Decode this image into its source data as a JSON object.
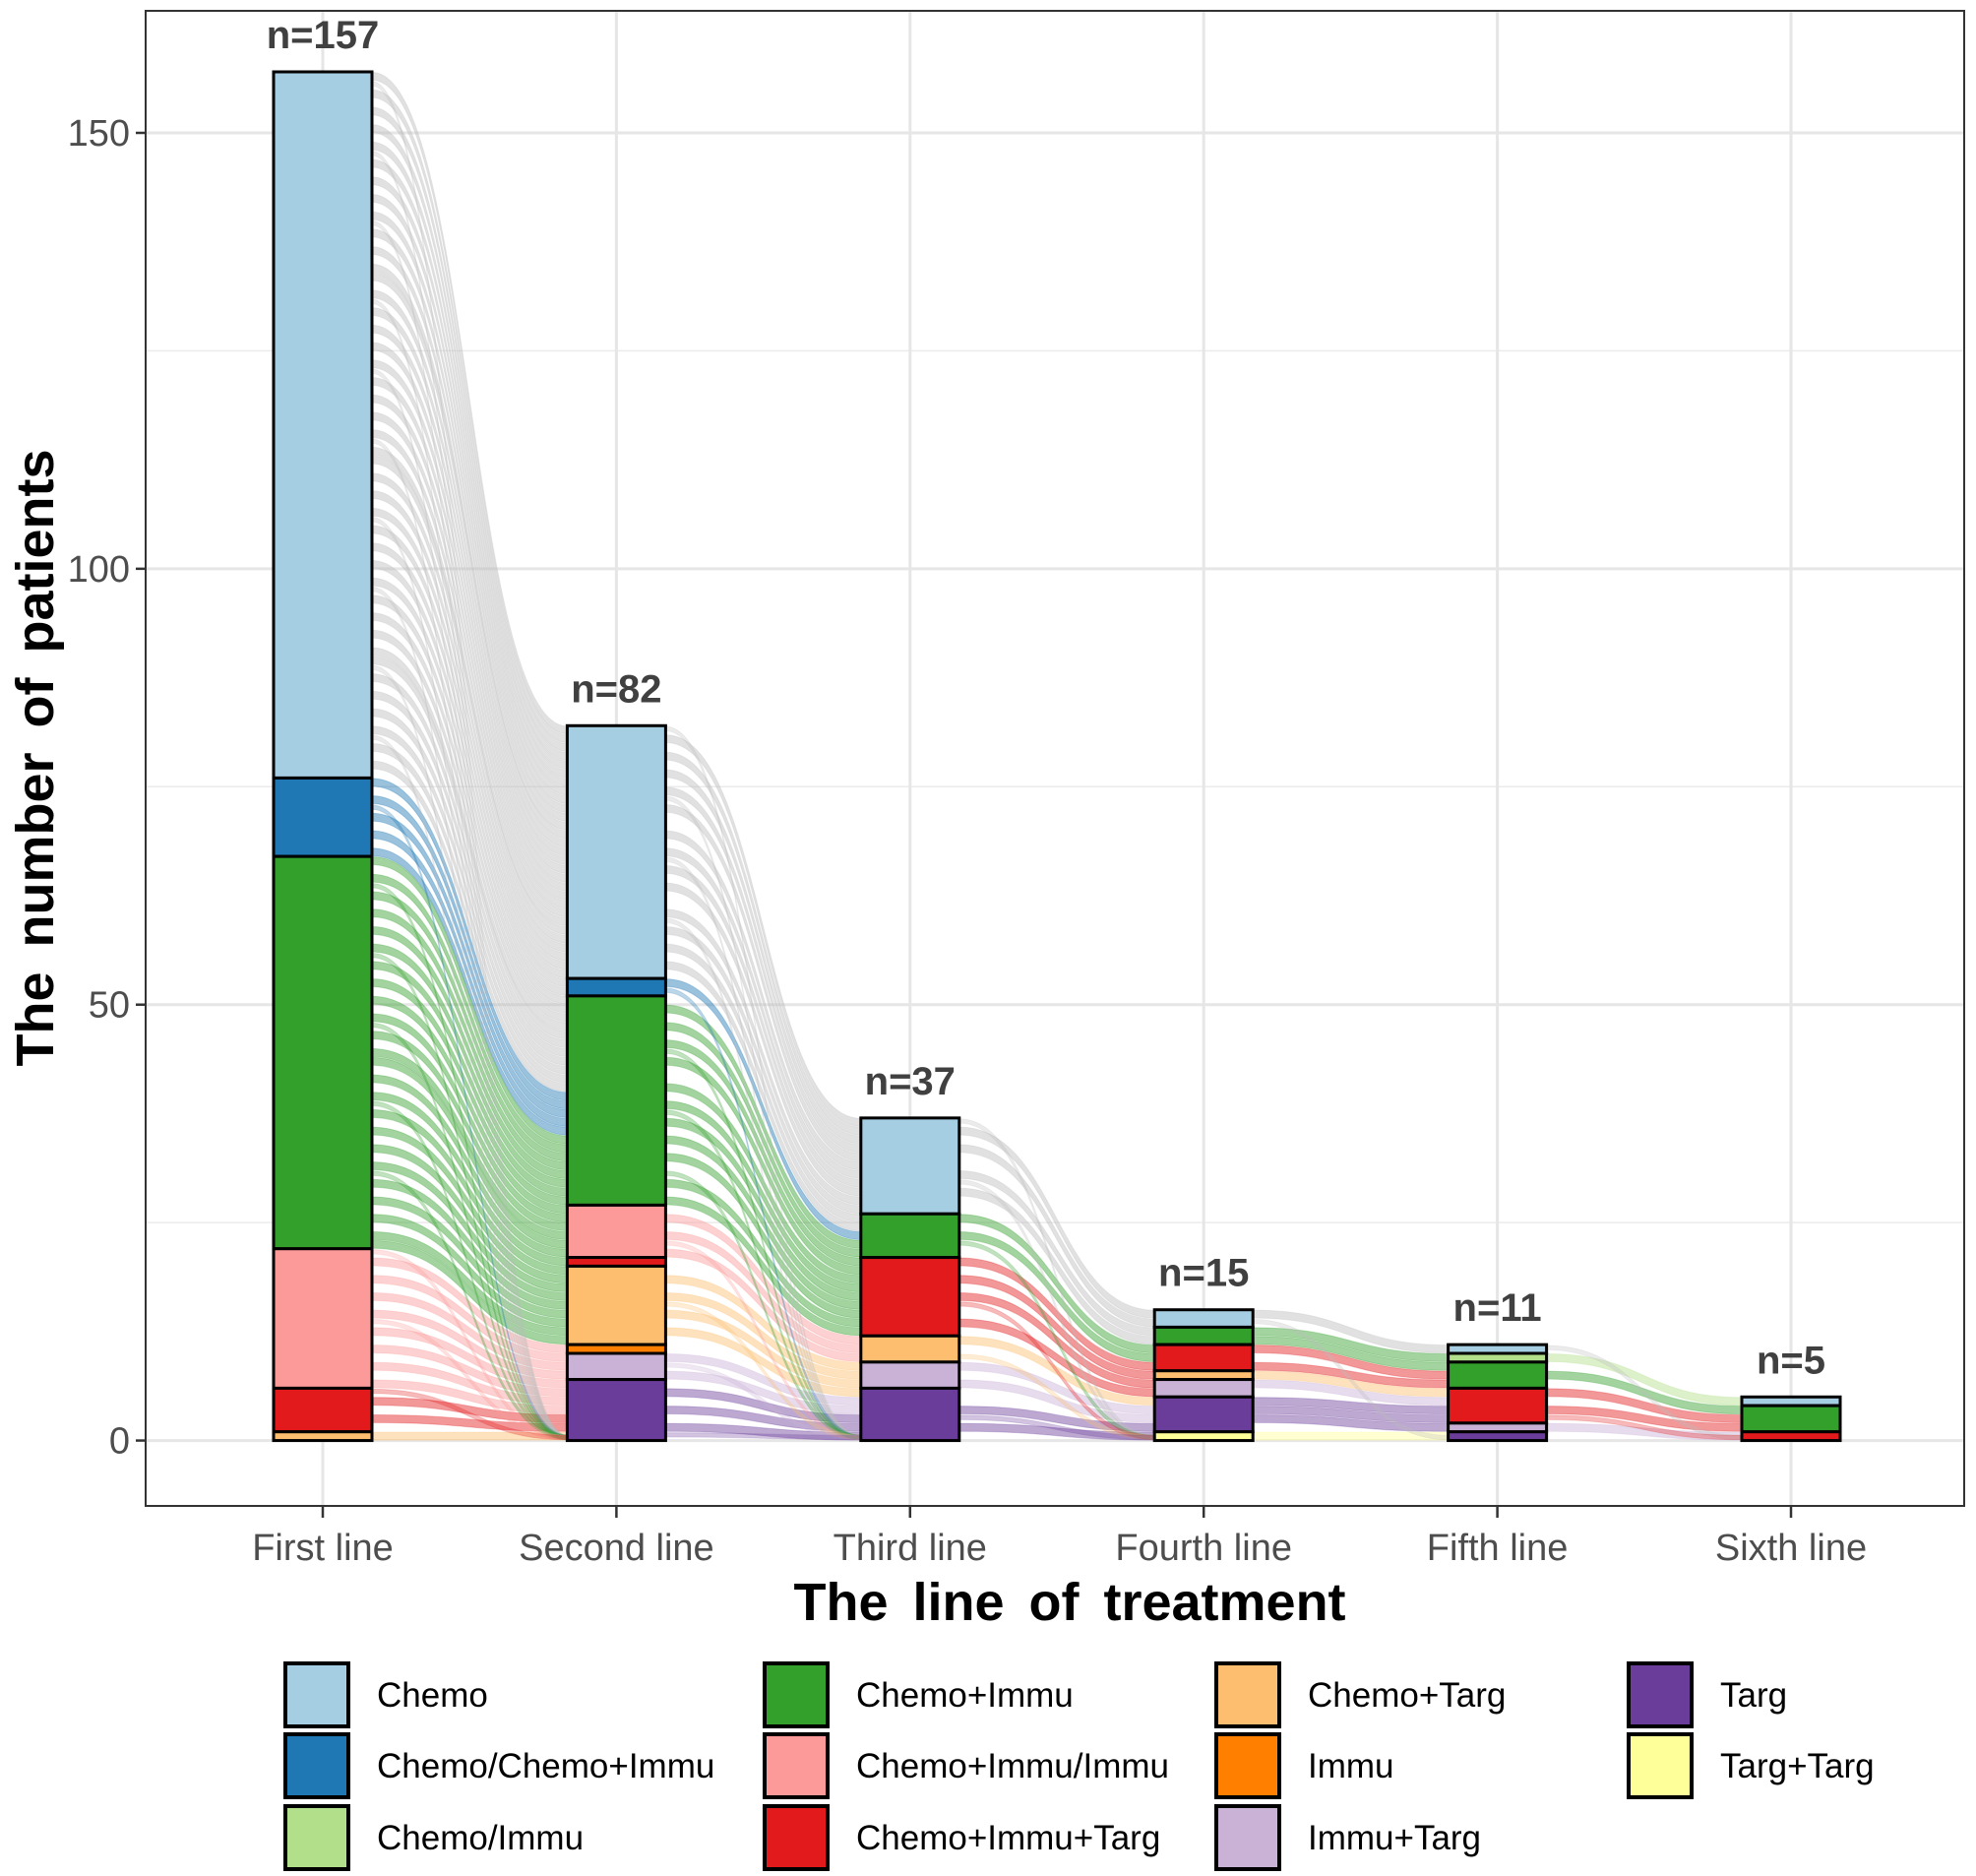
{
  "chart_data": {
    "type": "alluvial-bar",
    "xlabel": "The line of treatment",
    "ylabel": "The number of patients",
    "ylim": [
      -7.5,
      164
    ],
    "yticks": [
      0,
      50,
      100,
      150
    ],
    "grid": true,
    "legend_position": "bottom",
    "categories": [
      "First line",
      "Second line",
      "Third line",
      "Fourth line",
      "Fifth line",
      "Sixth line"
    ],
    "totals_labels": [
      "n=157",
      "n=82",
      "n=37",
      "n=15",
      "n=11",
      "n=5"
    ],
    "legend": [
      {
        "name": "Chemo",
        "color": "#a6cee3"
      },
      {
        "name": "Chemo/Chemo+Immu",
        "color": "#1f78b4"
      },
      {
        "name": "Chemo/Immu",
        "color": "#b2df8a"
      },
      {
        "name": "Chemo+Immu",
        "color": "#33a02c"
      },
      {
        "name": "Chemo+Immu/Immu",
        "color": "#fb9a99"
      },
      {
        "name": "Chemo+Immu+Targ",
        "color": "#e31a1c"
      },
      {
        "name": "Chemo+Targ",
        "color": "#fdbf6f"
      },
      {
        "name": "Immu",
        "color": "#ff7f00"
      },
      {
        "name": "Immu+Targ",
        "color": "#cab2d6"
      },
      {
        "name": "Targ",
        "color": "#6a3d9a"
      },
      {
        "name": "Targ+Targ",
        "color": "#ffff99"
      }
    ],
    "stacks": [
      [
        {
          "name": "Chemo",
          "value": 81
        },
        {
          "name": "Chemo/Chemo+Immu",
          "value": 9
        },
        {
          "name": "Chemo+Immu",
          "value": 45
        },
        {
          "name": "Chemo+Immu/Immu",
          "value": 16
        },
        {
          "name": "Chemo+Immu+Targ",
          "value": 5
        },
        {
          "name": "Chemo+Targ",
          "value": 1
        }
      ],
      [
        {
          "name": "Chemo",
          "value": 29
        },
        {
          "name": "Chemo/Chemo+Immu",
          "value": 2
        },
        {
          "name": "Chemo+Immu",
          "value": 24
        },
        {
          "name": "Chemo+Immu/Immu",
          "value": 6
        },
        {
          "name": "Chemo+Immu+Targ",
          "value": 1
        },
        {
          "name": "Chemo+Targ",
          "value": 9
        },
        {
          "name": "Immu",
          "value": 1
        },
        {
          "name": "Immu+Targ",
          "value": 3
        },
        {
          "name": "Targ",
          "value": 7
        }
      ],
      [
        {
          "name": "Chemo",
          "value": 11
        },
        {
          "name": "Chemo+Immu",
          "value": 5
        },
        {
          "name": "Chemo+Immu+Targ",
          "value": 9
        },
        {
          "name": "Chemo+Targ",
          "value": 3
        },
        {
          "name": "Immu+Targ",
          "value": 3
        },
        {
          "name": "Targ",
          "value": 6
        }
      ],
      [
        {
          "name": "Chemo",
          "value": 2
        },
        {
          "name": "Chemo+Immu",
          "value": 2
        },
        {
          "name": "Chemo+Immu+Targ",
          "value": 3
        },
        {
          "name": "Chemo+Targ",
          "value": 1
        },
        {
          "name": "Immu+Targ",
          "value": 2
        },
        {
          "name": "Targ",
          "value": 4
        },
        {
          "name": "Targ+Targ",
          "value": 1
        }
      ],
      [
        {
          "name": "Chemo",
          "value": 1
        },
        {
          "name": "Chemo/Immu",
          "value": 1
        },
        {
          "name": "Chemo+Immu",
          "value": 3
        },
        {
          "name": "Chemo+Immu+Targ",
          "value": 4
        },
        {
          "name": "Immu+Targ",
          "value": 1
        },
        {
          "name": "Targ",
          "value": 1
        }
      ],
      [
        {
          "name": "Chemo",
          "value": 1
        },
        {
          "name": "Chemo+Immu",
          "value": 3
        },
        {
          "name": "Chemo+Immu+Targ",
          "value": 1
        }
      ]
    ],
    "flow_color_default": "#bdbdbd"
  }
}
